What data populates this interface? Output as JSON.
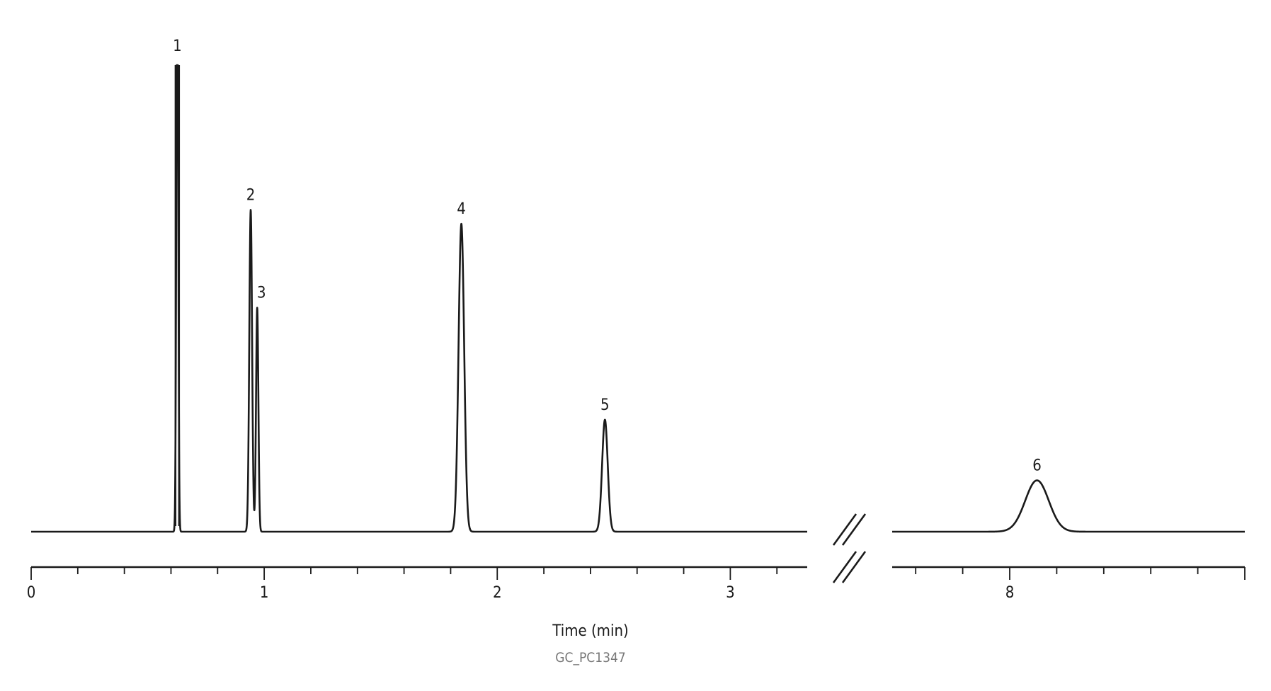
{
  "chart_data": {
    "type": "line",
    "title": "",
    "xlabel": "Time (min)",
    "ylabel": "",
    "figure_code": "GC_PC1347",
    "grid": false,
    "legend": "none",
    "broken_axis": true,
    "segments": [
      {
        "xlim": [
          0,
          3.33
        ],
        "major_ticks": [
          0,
          1,
          2,
          3
        ],
        "tick_labels": [
          "0",
          "1",
          "2",
          "3"
        ],
        "minor_step": 0.2
      },
      {
        "xlim": [
          7.5,
          9.0
        ],
        "major_ticks": [
          8
        ],
        "tick_labels": [
          "8"
        ],
        "minor_step": 0.2
      }
    ],
    "peaks": [
      {
        "label": "1",
        "time": 0.627,
        "height": 1.3,
        "sigma": 0.004,
        "off_scale": true
      },
      {
        "label": "2",
        "time": 0.942,
        "height": 0.69,
        "sigma": 0.006
      },
      {
        "label": "3",
        "time": 0.97,
        "height": 0.48,
        "sigma": 0.005
      },
      {
        "label": "4",
        "time": 1.846,
        "height": 0.66,
        "sigma": 0.012
      },
      {
        "label": "5",
        "time": 2.462,
        "height": 0.24,
        "sigma": 0.012
      },
      {
        "label": "6",
        "time": 8.116,
        "height": 0.11,
        "sigma": 0.05
      }
    ],
    "y_range_relative": [
      0,
      1.0
    ],
    "line_color": "#1a1a1a"
  }
}
